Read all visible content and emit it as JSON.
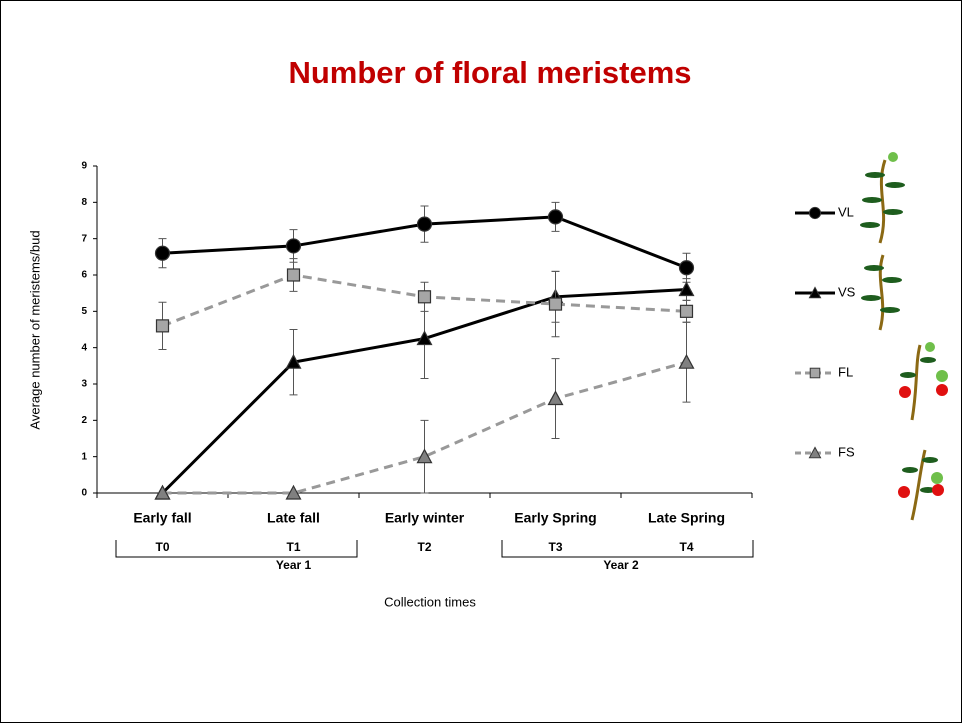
{
  "chart_data": {
    "type": "line",
    "title": "Number of floral meristems",
    "x_label": "Collection times",
    "y_label": "Average number of meristems/bud",
    "categories": [
      "Early fall",
      "Late fall",
      "Early winter",
      "Early Spring",
      "Late Spring"
    ],
    "time_points": [
      "T0",
      "T1",
      "T2",
      "T3",
      "T4"
    ],
    "years": [
      "Year 1",
      "Year 2"
    ],
    "ylim": [
      0,
      9
    ],
    "yticks": [
      0,
      1,
      2,
      3,
      4,
      5,
      6,
      7,
      8,
      9
    ],
    "series": [
      {
        "name": "VL",
        "color": "#000000",
        "marker": "circle",
        "marker_fill": "#000000",
        "dashed": false,
        "values": [
          6.6,
          6.8,
          7.4,
          7.6,
          6.2
        ],
        "errors": [
          0.4,
          0.45,
          0.5,
          0.4,
          0.4
        ]
      },
      {
        "name": "VS",
        "color": "#000000",
        "marker": "triangle",
        "marker_fill": "#000000",
        "dashed": false,
        "values": [
          0,
          3.6,
          4.25,
          5.4,
          5.6
        ],
        "errors": [
          0,
          0.9,
          1.1,
          0.7,
          0.3
        ]
      },
      {
        "name": "FL",
        "color": "#999999",
        "marker": "square",
        "marker_fill": "#a6a6a6",
        "dashed": true,
        "values": [
          4.6,
          6.0,
          5.4,
          5.2,
          5.0
        ],
        "errors": [
          0.65,
          0.45,
          0.4,
          0.9,
          0.3
        ]
      },
      {
        "name": "FS",
        "color": "#999999",
        "marker": "triangle",
        "marker_fill": "#808080",
        "dashed": true,
        "values": [
          0,
          0,
          1.0,
          2.6,
          3.6
        ],
        "errors": [
          0,
          0,
          1.0,
          1.1,
          1.1
        ]
      }
    ]
  }
}
